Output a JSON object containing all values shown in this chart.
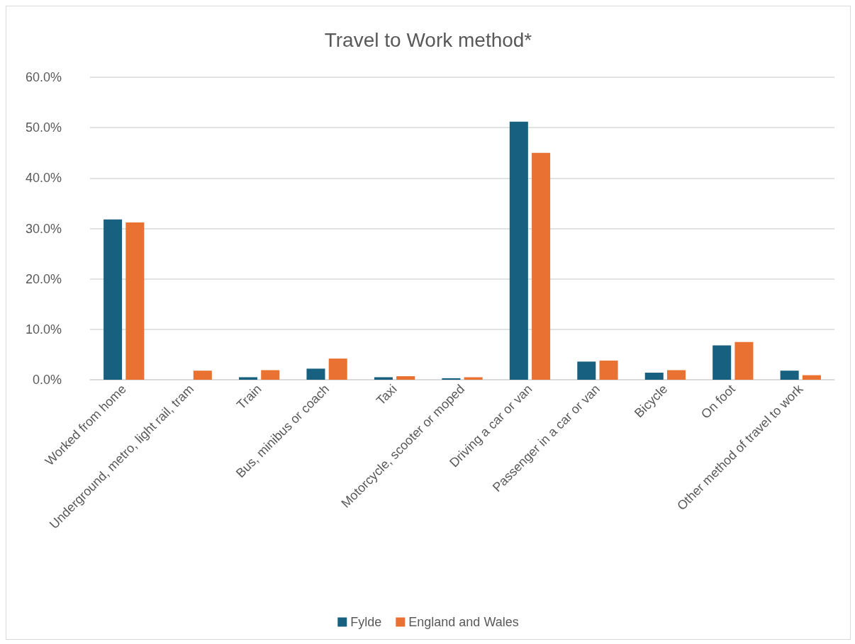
{
  "chart_data": {
    "type": "bar",
    "title": "Travel to Work method*",
    "categories": [
      "Worked from home",
      "Underground, metro, light rail, tram",
      "Train",
      "Bus, minibus or coach",
      "Taxi",
      "Motorcycle, scooter or moped",
      "Driving a car or van",
      "Passenger in a car or van",
      "Bicycle",
      "On foot",
      "Other method of travel to work"
    ],
    "series": [
      {
        "name": "Fylde",
        "color": "#17607f",
        "values": [
          31.8,
          0,
          0.5,
          2.2,
          0.5,
          0.3,
          51.2,
          3.6,
          1.4,
          6.8,
          1.8
        ]
      },
      {
        "name": "England and Wales",
        "color": "#e97132",
        "values": [
          31.2,
          1.8,
          1.9,
          4.2,
          0.7,
          0.5,
          45.0,
          3.8,
          1.9,
          7.5,
          0.9
        ]
      }
    ],
    "ylim": [
      0,
      60
    ],
    "yticks": [
      {
        "value": 0,
        "label": "0.0%"
      },
      {
        "value": 10,
        "label": "10.0%"
      },
      {
        "value": 20,
        "label": "20.0%"
      },
      {
        "value": 30,
        "label": "30.0%"
      },
      {
        "value": 40,
        "label": "40.0%"
      },
      {
        "value": 50,
        "label": "50.0%"
      },
      {
        "value": 60,
        "label": "60.0%"
      }
    ],
    "grid": "y",
    "legend": "bottom"
  }
}
